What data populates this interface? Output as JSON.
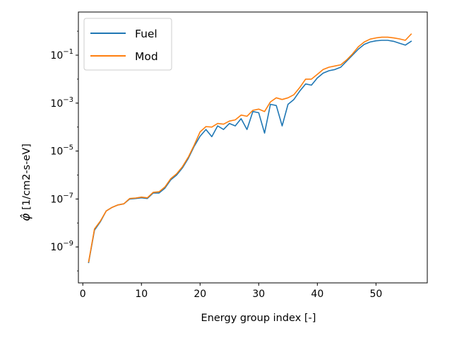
{
  "chart_data": {
    "type": "line",
    "xlabel": "Energy group index [-]",
    "ylabel_symbol": "φ̂",
    "ylabel_units": "[1/cm2-s-eV]",
    "x_scale": "linear",
    "y_scale": "log",
    "xlim": [
      -0.75,
      58.75
    ],
    "ylim_log10": [
      -10.5,
      0.8
    ],
    "x_ticks": [
      {
        "value": 0,
        "label": "0"
      },
      {
        "value": 10,
        "label": "10"
      },
      {
        "value": 20,
        "label": "20"
      },
      {
        "value": 30,
        "label": "30"
      },
      {
        "value": 40,
        "label": "40"
      },
      {
        "value": 50,
        "label": "50"
      }
    ],
    "y_ticks": [
      {
        "exp": -9,
        "base": "10",
        "sup": "−9"
      },
      {
        "exp": -7,
        "base": "10",
        "sup": "−7"
      },
      {
        "exp": -5,
        "base": "10",
        "sup": "−5"
      },
      {
        "exp": -3,
        "base": "10",
        "sup": "−3"
      },
      {
        "exp": -1,
        "base": "10",
        "sup": "−1"
      }
    ],
    "grid": false,
    "legend_position": "upper-left",
    "x": [
      1,
      2,
      3,
      4,
      5,
      6,
      7,
      8,
      9,
      10,
      11,
      12,
      13,
      14,
      15,
      16,
      17,
      18,
      19,
      20,
      21,
      22,
      23,
      24,
      25,
      26,
      27,
      28,
      29,
      30,
      31,
      32,
      33,
      34,
      35,
      36,
      37,
      38,
      39,
      40,
      41,
      42,
      43,
      44,
      45,
      46,
      47,
      48,
      49,
      50,
      51,
      52,
      53,
      54,
      55,
      56
    ],
    "series": [
      {
        "name": "Fuel",
        "color": "#1f77b4",
        "log10_values": [
          -9.65,
          -8.3,
          -7.95,
          -7.5,
          -7.35,
          -7.25,
          -7.2,
          -7.0,
          -6.98,
          -6.95,
          -6.98,
          -6.75,
          -6.75,
          -6.55,
          -6.2,
          -6.0,
          -5.7,
          -5.3,
          -4.8,
          -4.38,
          -4.1,
          -4.4,
          -3.95,
          -4.1,
          -3.85,
          -3.95,
          -3.65,
          -4.1,
          -3.35,
          -3.4,
          -4.25,
          -3.05,
          -3.1,
          -3.95,
          -3.05,
          -2.85,
          -2.5,
          -2.2,
          -2.25,
          -1.95,
          -1.75,
          -1.65,
          -1.6,
          -1.5,
          -1.25,
          -1.0,
          -0.75,
          -0.55,
          -0.45,
          -0.4,
          -0.38,
          -0.38,
          -0.42,
          -0.5,
          -0.58,
          -0.42
        ]
      },
      {
        "name": "Mod",
        "color": "#ff7f0e",
        "log10_values": [
          -9.62,
          -8.25,
          -7.92,
          -7.5,
          -7.35,
          -7.25,
          -7.2,
          -6.98,
          -6.96,
          -6.92,
          -6.95,
          -6.72,
          -6.7,
          -6.5,
          -6.15,
          -5.95,
          -5.65,
          -5.25,
          -4.75,
          -4.2,
          -3.98,
          -4.0,
          -3.85,
          -3.88,
          -3.75,
          -3.7,
          -3.5,
          -3.55,
          -3.3,
          -3.25,
          -3.35,
          -2.95,
          -2.78,
          -2.85,
          -2.78,
          -2.65,
          -2.35,
          -2.0,
          -2.0,
          -1.8,
          -1.6,
          -1.5,
          -1.45,
          -1.4,
          -1.2,
          -0.95,
          -0.65,
          -0.45,
          -0.33,
          -0.28,
          -0.25,
          -0.25,
          -0.28,
          -0.32,
          -0.38,
          -0.12
        ]
      }
    ]
  }
}
